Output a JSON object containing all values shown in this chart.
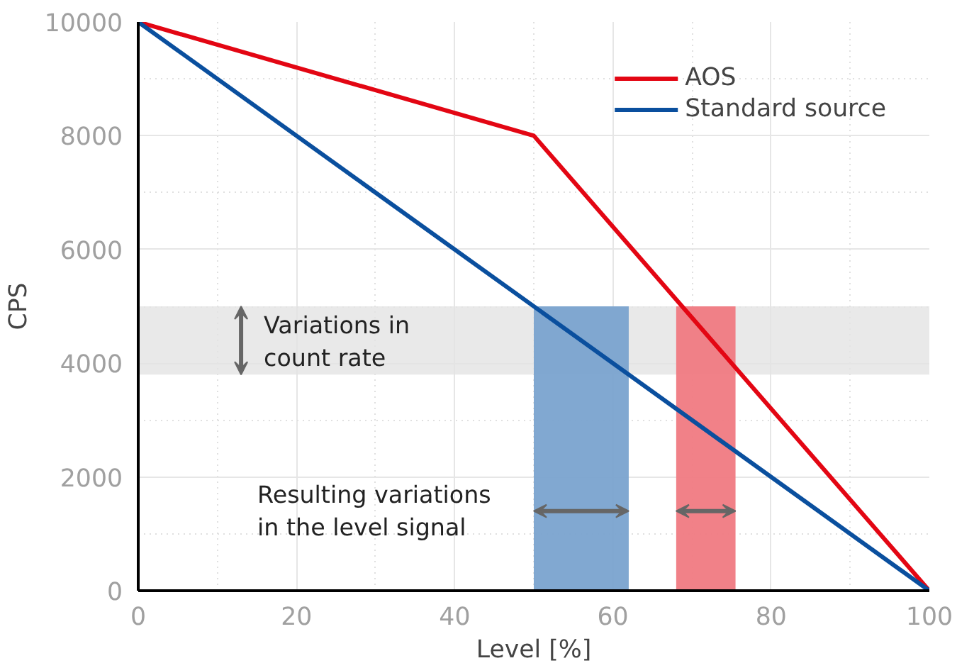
{
  "chart_data": {
    "type": "line",
    "xlabel": "Level [%]",
    "ylabel": "CPS",
    "series": [
      {
        "name": "AOS",
        "color": "#e30613",
        "x": [
          0,
          50,
          100
        ],
        "values": [
          10000,
          8000,
          0
        ]
      },
      {
        "name": "Standard source",
        "color": "#0a4f9e",
        "x": [
          0,
          100
        ],
        "values": [
          10000,
          0
        ]
      }
    ],
    "xlim": [
      0,
      100
    ],
    "ylim": [
      0,
      10000
    ],
    "xticks": [
      0,
      20,
      40,
      60,
      80,
      100
    ],
    "yticks": [
      0,
      2000,
      4000,
      6000,
      8000,
      10000
    ],
    "bands": [
      {
        "axis": "y",
        "from": 3800,
        "to": 5000,
        "color": "#e3e3e3"
      },
      {
        "axis": "x",
        "from": 50,
        "to": 62,
        "color": "#7aa3cf"
      },
      {
        "axis": "x",
        "from": 68,
        "to": 75.5,
        "color": "#f07a82"
      }
    ],
    "annotations": [
      {
        "text": "Variations in\ncount rate",
        "x": 13,
        "y": 5000
      },
      {
        "text": "Resulting variations\nin the level signal",
        "x": 50,
        "y": 1400
      }
    ],
    "grid": true,
    "legend": "top right",
    "marker": "none",
    "line_style": "solid"
  }
}
